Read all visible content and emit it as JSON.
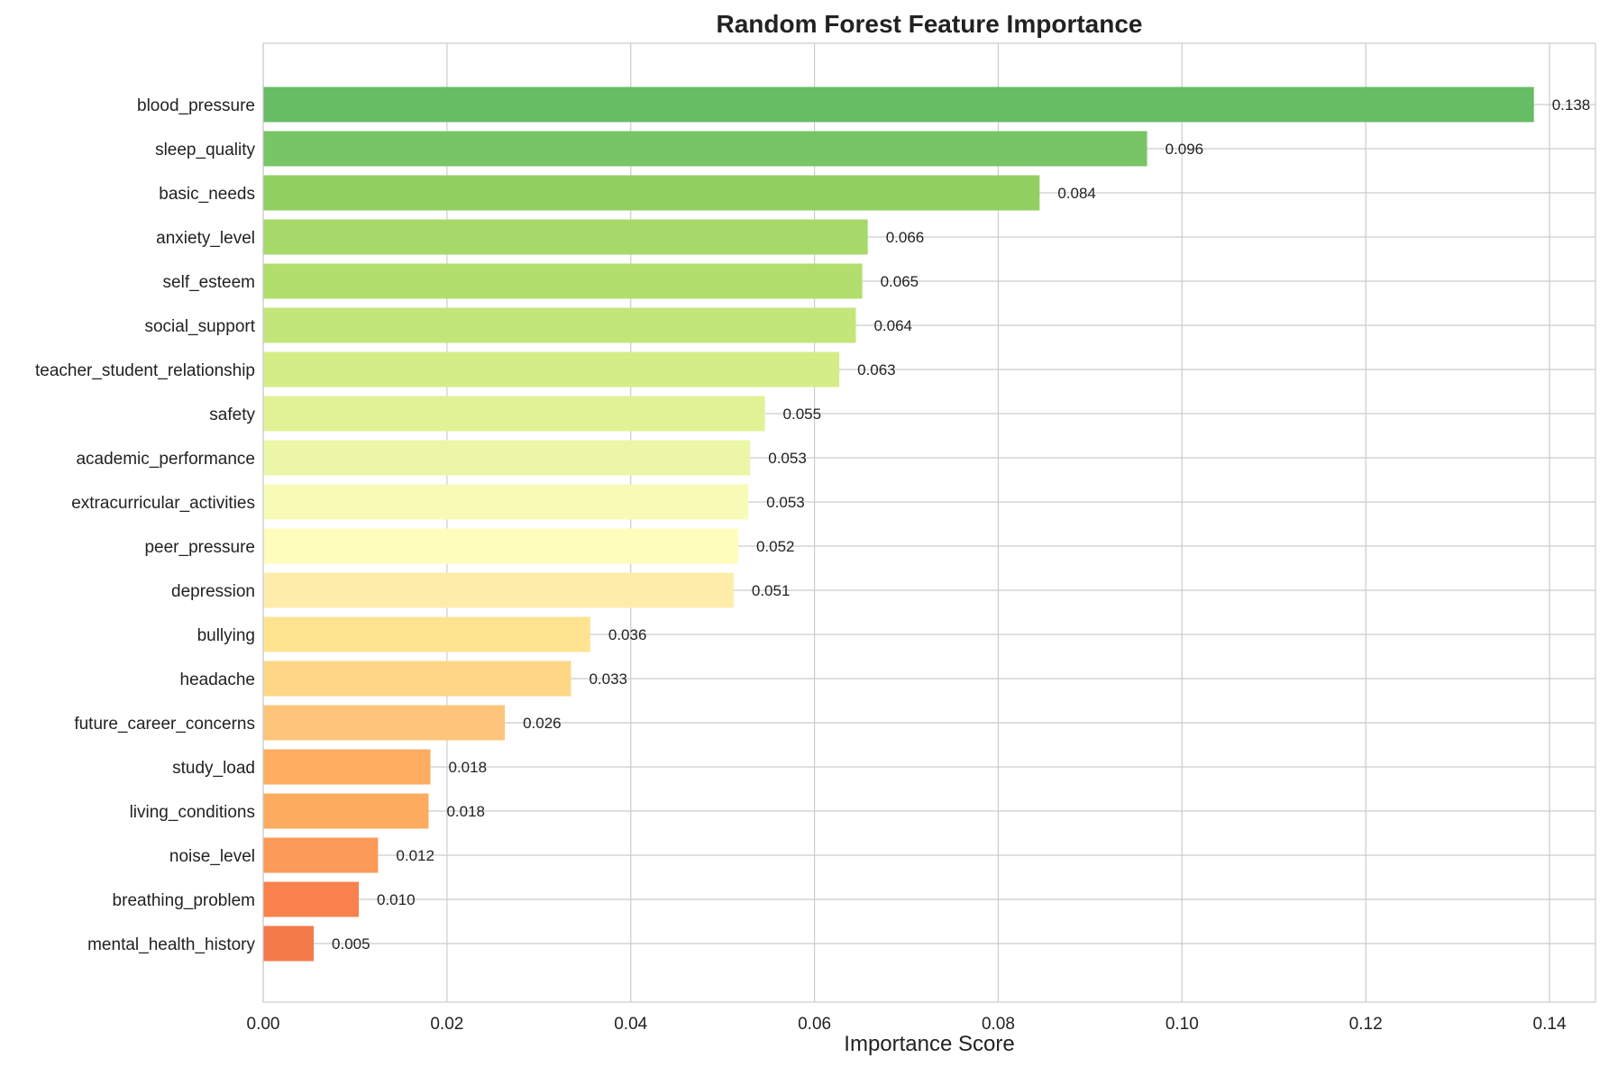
{
  "chart_data": {
    "type": "bar",
    "orientation": "horizontal",
    "title": "Random Forest Feature Importance",
    "xlabel": "Importance Score",
    "ylabel": "",
    "xlim": [
      0,
      0.145
    ],
    "xticks": [
      "0.00",
      "0.02",
      "0.04",
      "0.06",
      "0.08",
      "0.10",
      "0.12",
      "0.14"
    ],
    "grid": true,
    "categories": [
      "blood_pressure",
      "sleep_quality",
      "basic_needs",
      "anxiety_level",
      "self_esteem",
      "social_support",
      "teacher_student_relationship",
      "safety",
      "academic_performance",
      "extracurricular_activities",
      "peer_pressure",
      "depression",
      "bullying",
      "headache",
      "future_career_concerns",
      "study_load",
      "living_conditions",
      "noise_level",
      "breathing_problem",
      "mental_health_history"
    ],
    "values": [
      0.1383,
      0.0962,
      0.0845,
      0.0658,
      0.0652,
      0.0645,
      0.0627,
      0.0546,
      0.053,
      0.0528,
      0.0517,
      0.0512,
      0.0356,
      0.0335,
      0.0263,
      0.0182,
      0.018,
      0.0125,
      0.0104,
      0.0055
    ],
    "value_labels": [
      "0.138",
      "0.096",
      "0.084",
      "0.066",
      "0.065",
      "0.064",
      "0.063",
      "0.055",
      "0.053",
      "0.053",
      "0.052",
      "0.051",
      "0.036",
      "0.033",
      "0.026",
      "0.018",
      "0.018",
      "0.012",
      "0.010",
      "0.005"
    ],
    "colors": [
      "#66bd63",
      "#78c565",
      "#91cf60",
      "#a6d96a",
      "#b2de6e",
      "#c3e67b",
      "#d4ed87",
      "#e0f295",
      "#ebf7a6",
      "#f8fbb6",
      "#fefdbc",
      "#feedaa",
      "#fee491",
      "#fed685",
      "#fdc57b",
      "#fdad60",
      "#fdab5e",
      "#fc9a57",
      "#f8814d",
      "#f57a4a"
    ]
  }
}
